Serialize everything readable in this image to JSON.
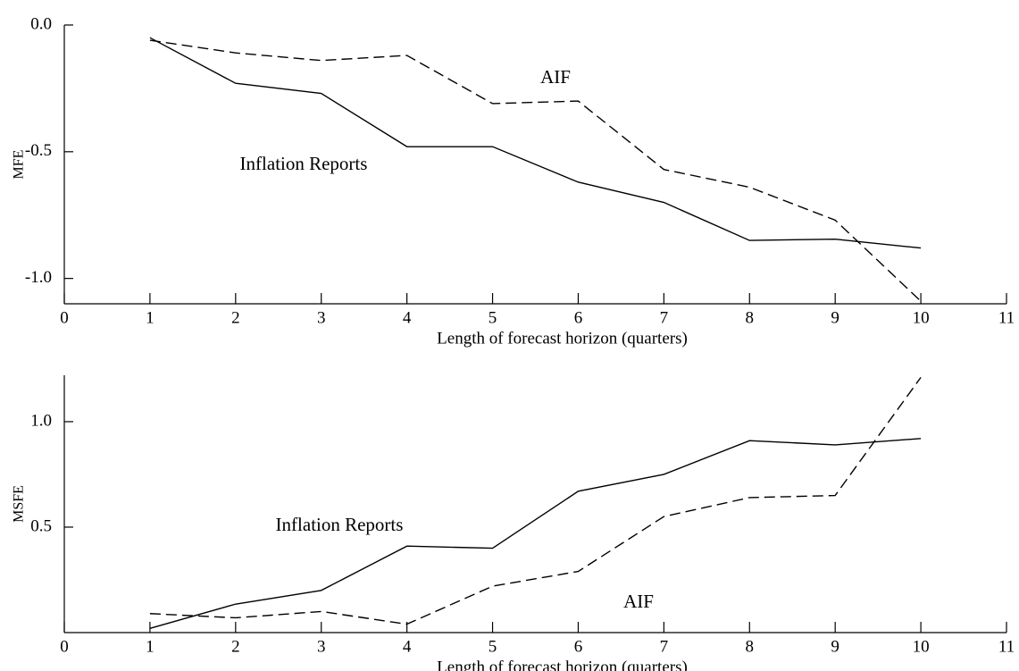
{
  "chart_data": [
    {
      "type": "line",
      "ylabel": "MFE",
      "xlabel": "Length of forecast horizon (quarters)",
      "x": [
        1,
        2,
        3,
        4,
        5,
        6,
        7,
        8,
        9,
        10
      ],
      "series": [
        {
          "name": "Inflation Reports",
          "color": "#000000",
          "line_style": "solid",
          "values": [
            -0.05,
            -0.23,
            -0.27,
            -0.48,
            -0.48,
            -0.62,
            -0.7,
            -0.85,
            -0.845,
            -0.88
          ]
        },
        {
          "name": "AIF",
          "color": "#000000",
          "line_style": "dashed",
          "values": [
            -0.06,
            -0.11,
            -0.14,
            -0.12,
            -0.31,
            -0.3,
            -0.57,
            -0.64,
            -0.77,
            -1.09
          ]
        }
      ],
      "xlim": [
        0,
        11
      ],
      "xticks": [
        0,
        1,
        2,
        3,
        4,
        5,
        6,
        7,
        8,
        9,
        10,
        11
      ],
      "ylim": [
        -1.1,
        0.0
      ],
      "yticks": [
        {
          "value": 0,
          "label": "0.0"
        },
        {
          "value": -0.5,
          "label": "-0.5"
        },
        {
          "value": -1.0,
          "label": "-1.0"
        }
      ]
    },
    {
      "type": "line",
      "ylabel": "MSFE",
      "xlabel": "Length of forecast horizon (quarters)",
      "x": [
        1,
        2,
        3,
        4,
        5,
        6,
        7,
        8,
        9,
        10
      ],
      "series": [
        {
          "name": "Inflation Reports",
          "color": "#000000",
          "line_style": "solid",
          "values": [
            0.02,
            0.135,
            0.2,
            0.41,
            0.4,
            0.67,
            0.75,
            0.91,
            0.89,
            0.92
          ]
        },
        {
          "name": "AIF",
          "color": "#000000",
          "line_style": "dashed",
          "values": [
            0.09,
            0.07,
            0.1,
            0.04,
            0.22,
            0.29,
            0.55,
            0.64,
            0.65,
            1.21
          ]
        }
      ],
      "xlim": [
        0,
        11
      ],
      "xticks": [
        0,
        1,
        2,
        3,
        4,
        5,
        6,
        7,
        8,
        9,
        10,
        11
      ],
      "ylim": [
        0,
        1.22
      ],
      "yticks": [
        {
          "value": 1.0,
          "label": "1.0"
        },
        {
          "value": 0.5,
          "label": "0.5"
        }
      ]
    }
  ]
}
